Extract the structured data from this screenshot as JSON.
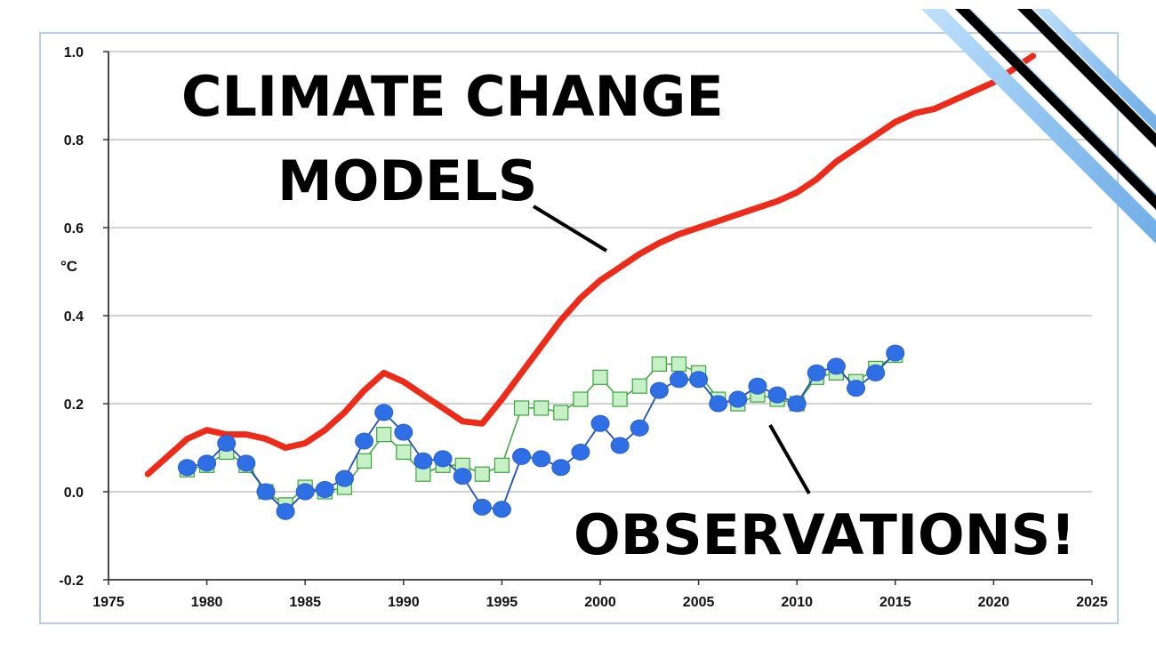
{
  "colors": {
    "models": "#ee2a18",
    "obs_blue": "#2f6fe6",
    "obs_green_fill": "#c6f0c6",
    "obs_green_line": "#3da33d",
    "grid": "#b8b8b8",
    "frame": "#b9cde6",
    "ribbon_blue": "#8ec3f0"
  },
  "annotations": {
    "models_line1": "CLIMATE CHANGE",
    "models_line2": "MODELS",
    "observations": "OBSERVATIONS!"
  },
  "chart_data": {
    "type": "line",
    "ylabel": "°C",
    "xlim": [
      1975,
      2025
    ],
    "ylim": [
      -0.2,
      1.0
    ],
    "x_ticks": [
      "1975",
      "1980",
      "1985",
      "1990",
      "1995",
      "2000",
      "2005",
      "2010",
      "2015",
      "2020",
      "2025"
    ],
    "y_ticks": [
      "1.0",
      "0.8",
      "0.6",
      "0.4",
      "0.2",
      "0.0",
      "-0.2"
    ],
    "grid": true,
    "series": [
      {
        "style": "thick-line",
        "color": "#ee2a18",
        "x": [
          1977,
          1978,
          1979,
          1980,
          1981,
          1982,
          1983,
          1984,
          1985,
          1986,
          1987,
          1988,
          1989,
          1990,
          1991,
          1992,
          1993,
          1994,
          1995,
          1996,
          1997,
          1998,
          1999,
          2000,
          2001,
          2002,
          2003,
          2004,
          2005,
          2006,
          2007,
          2008,
          2009,
          2010,
          2011,
          2012,
          2013,
          2014,
          2015,
          2016,
          2017,
          2018,
          2019,
          2020,
          2021,
          2022
        ],
        "values": [
          0.04,
          0.08,
          0.12,
          0.14,
          0.13,
          0.13,
          0.12,
          0.1,
          0.11,
          0.14,
          0.18,
          0.23,
          0.27,
          0.25,
          0.22,
          0.19,
          0.16,
          0.155,
          0.21,
          0.27,
          0.33,
          0.39,
          0.44,
          0.48,
          0.51,
          0.54,
          0.565,
          0.585,
          0.6,
          0.615,
          0.63,
          0.645,
          0.66,
          0.68,
          0.71,
          0.75,
          0.78,
          0.81,
          0.84,
          0.86,
          0.87,
          0.89,
          0.91,
          0.93,
          0.96,
          0.99
        ]
      },
      {
        "style": "square-markers",
        "color": "#3da33d",
        "x": [
          1979,
          1980,
          1981,
          1982,
          1983,
          1984,
          1985,
          1986,
          1987,
          1988,
          1989,
          1990,
          1991,
          1992,
          1993,
          1994,
          1995,
          1996,
          1997,
          1998,
          1999,
          2000,
          2001,
          2002,
          2003,
          2004,
          2005,
          2006,
          2007,
          2008,
          2009,
          2010,
          2011,
          2012,
          2013,
          2014,
          2015
        ],
        "values": [
          0.05,
          0.06,
          0.09,
          0.06,
          0.0,
          -0.03,
          0.01,
          0.0,
          0.01,
          0.07,
          0.13,
          0.09,
          0.04,
          0.06,
          0.06,
          0.04,
          0.06,
          0.19,
          0.19,
          0.18,
          0.21,
          0.26,
          0.21,
          0.24,
          0.29,
          0.29,
          0.27,
          0.21,
          0.2,
          0.22,
          0.21,
          0.2,
          0.26,
          0.27,
          0.25,
          0.28,
          0.31
        ]
      },
      {
        "style": "circle-markers",
        "color": "#2f6fe6",
        "x": [
          1979,
          1980,
          1981,
          1982,
          1983,
          1984,
          1985,
          1986,
          1987,
          1988,
          1989,
          1990,
          1991,
          1992,
          1993,
          1994,
          1995,
          1996,
          1997,
          1998,
          1999,
          2000,
          2001,
          2002,
          2003,
          2004,
          2005,
          2006,
          2007,
          2008,
          2009,
          2010,
          2011,
          2012,
          2013,
          2014,
          2015
        ],
        "values": [
          0.055,
          0.065,
          0.11,
          0.065,
          0.0,
          -0.045,
          0.0,
          0.005,
          0.03,
          0.115,
          0.18,
          0.135,
          0.07,
          0.075,
          0.035,
          -0.035,
          -0.04,
          0.08,
          0.075,
          0.055,
          0.09,
          0.155,
          0.105,
          0.145,
          0.23,
          0.255,
          0.255,
          0.2,
          0.21,
          0.24,
          0.22,
          0.2,
          0.27,
          0.285,
          0.235,
          0.27,
          0.315
        ]
      }
    ]
  }
}
